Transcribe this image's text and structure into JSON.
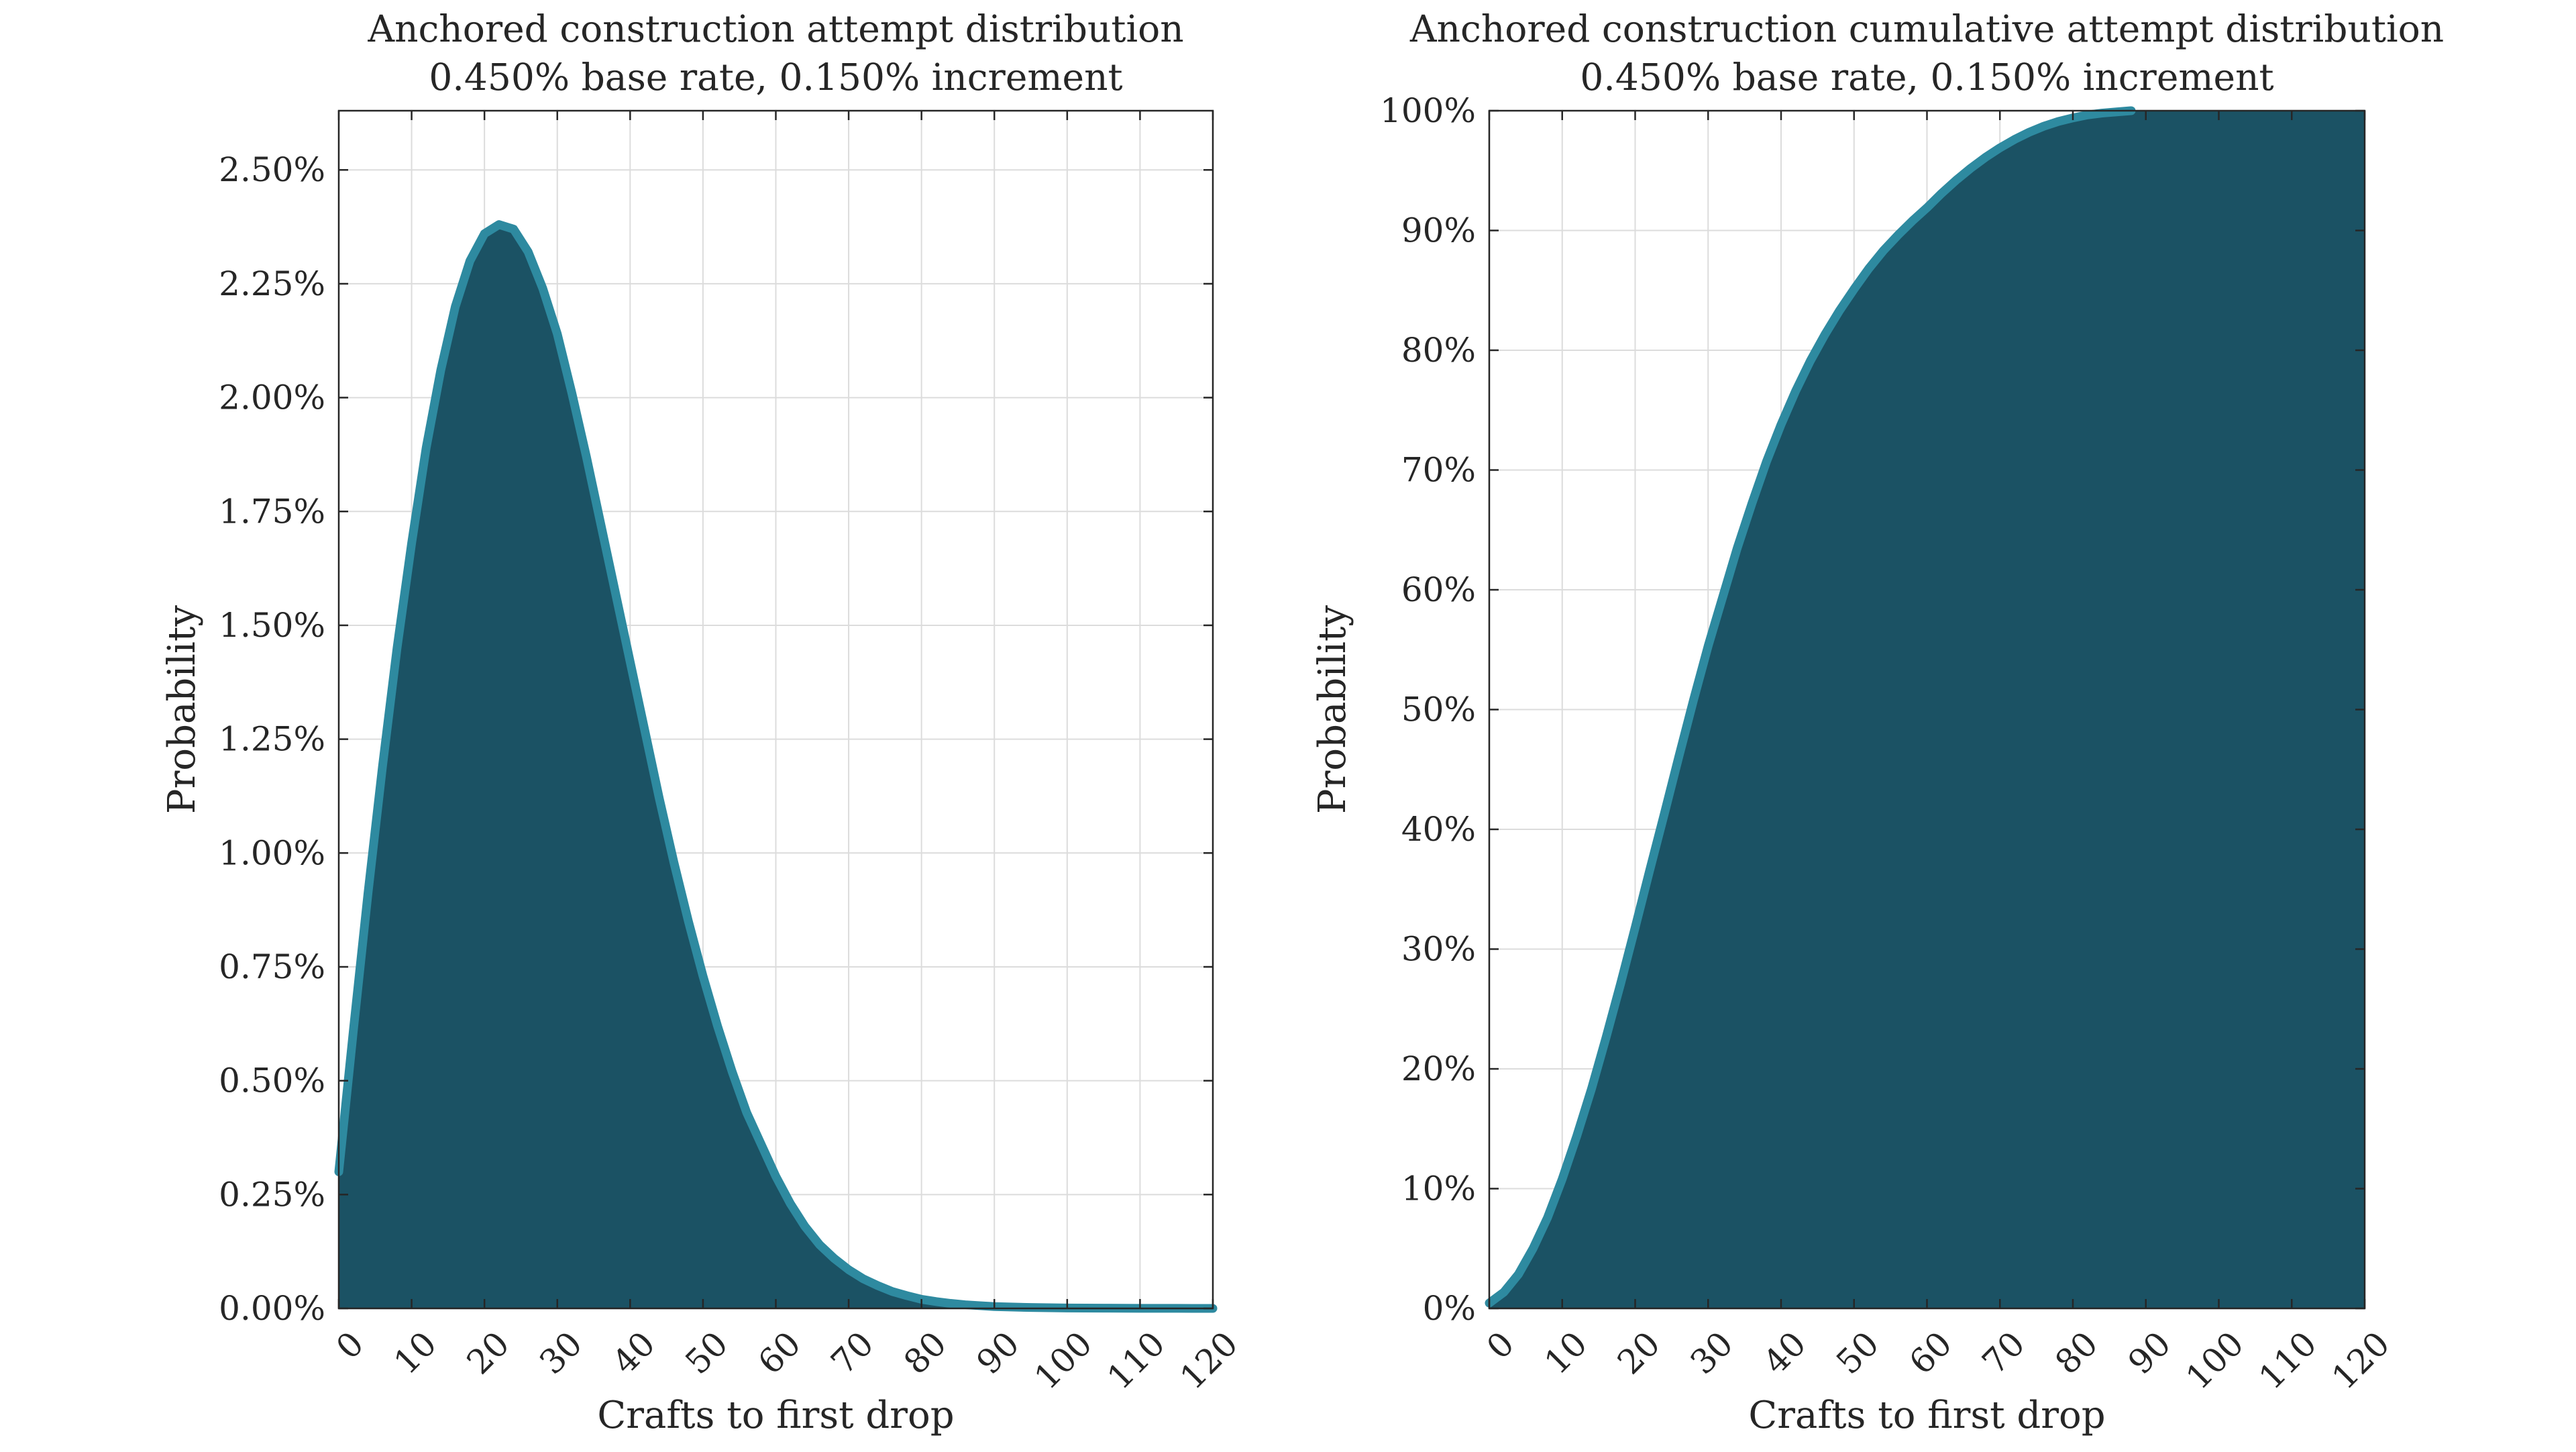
{
  "colors": {
    "fill": "#1b5264",
    "line": "#2e8aa0",
    "grid": "#dcdcdc",
    "axis": "#262626",
    "background": "#ffffff"
  },
  "chart_data": [
    {
      "type": "area",
      "title": "Anchored construction attempt distribution",
      "subtitle": "0.450% base rate, 0.150% increment",
      "xlabel": "Crafts to first drop",
      "ylabel": "Probability",
      "xlim": [
        0,
        120
      ],
      "ylim": [
        0,
        0.0263
      ],
      "xticks": [
        0,
        10,
        20,
        30,
        40,
        50,
        60,
        70,
        80,
        90,
        100,
        110,
        120
      ],
      "xtick_labels": [
        "0",
        "10",
        "20",
        "30",
        "40",
        "50",
        "60",
        "70",
        "80",
        "90",
        "100",
        "110",
        "120"
      ],
      "yticks": [
        0,
        0.0025,
        0.005,
        0.0075,
        0.01,
        0.0125,
        0.015,
        0.0175,
        0.02,
        0.0225,
        0.025
      ],
      "ytick_labels": [
        "0.00%",
        "0.25%",
        "0.50%",
        "0.75%",
        "1.00%",
        "1.25%",
        "1.50%",
        "1.75%",
        "2.00%",
        "2.25%",
        "2.50%"
      ],
      "grid": true,
      "series": [
        {
          "x": [
            0,
            2,
            4,
            6,
            8,
            10,
            12,
            14,
            16,
            18,
            20,
            22,
            24,
            26,
            28,
            30,
            32,
            34,
            36,
            38,
            40,
            42,
            44,
            46,
            48,
            50,
            52,
            54,
            56,
            58,
            60,
            62,
            64,
            66,
            68,
            70,
            72,
            74,
            76,
            78,
            80,
            82,
            84,
            86,
            88,
            90,
            95,
            100,
            105,
            110,
            115,
            120
          ],
          "y": [
            0.003,
            0.0061,
            0.0091,
            0.0119,
            0.0145,
            0.0168,
            0.0189,
            0.0206,
            0.022,
            0.023,
            0.0236,
            0.0238,
            0.0237,
            0.0232,
            0.0224,
            0.0214,
            0.0201,
            0.0187,
            0.0172,
            0.0157,
            0.0142,
            0.0127,
            0.0112,
            0.0098,
            0.0085,
            0.0073,
            0.0062,
            0.0052,
            0.0043,
            0.0036,
            0.0029,
            0.0023,
            0.0018,
            0.0014,
            0.0011,
            0.00085,
            0.00065,
            0.0005,
            0.00037,
            0.00028,
            0.0002,
            0.00015,
            0.00011,
            8e-05,
            6e-05,
            4e-05,
            2e-05,
            1e-05,
            5e-06,
            2e-06,
            1e-06,
            0
          ]
        }
      ]
    },
    {
      "type": "area",
      "title": "Anchored construction cumulative attempt distribution",
      "subtitle": "0.450% base rate, 0.150% increment",
      "xlabel": "Crafts to first drop",
      "ylabel": "Probability",
      "xlim": [
        0,
        120
      ],
      "ylim": [
        0,
        1
      ],
      "xticks": [
        0,
        10,
        20,
        30,
        40,
        50,
        60,
        70,
        80,
        90,
        100,
        110,
        120
      ],
      "xtick_labels": [
        "0",
        "10",
        "20",
        "30",
        "40",
        "50",
        "60",
        "70",
        "80",
        "90",
        "100",
        "110",
        "120"
      ],
      "yticks": [
        0,
        0.1,
        0.2,
        0.3,
        0.4,
        0.5,
        0.6,
        0.7,
        0.8,
        0.9,
        1.0
      ],
      "ytick_labels": [
        "0%",
        "10%",
        "20%",
        "30%",
        "40%",
        "50%",
        "60%",
        "70%",
        "80%",
        "90%",
        "100%"
      ],
      "grid": true,
      "series": [
        {
          "x": [
            0,
            2,
            4,
            6,
            8,
            10,
            12,
            14,
            16,
            18,
            20,
            22,
            24,
            26,
            28,
            30,
            32,
            34,
            36,
            38,
            40,
            42,
            44,
            46,
            48,
            50,
            52,
            54,
            56,
            58,
            60,
            62,
            64,
            66,
            68,
            70,
            72,
            74,
            76,
            78,
            80,
            82,
            84,
            86,
            88
          ],
          "y": [
            0.0045,
            0.0135,
            0.0285,
            0.05,
            0.076,
            0.108,
            0.144,
            0.183,
            0.226,
            0.271,
            0.318,
            0.366,
            0.413,
            0.461,
            0.508,
            0.553,
            0.594,
            0.635,
            0.672,
            0.707,
            0.738,
            0.766,
            0.791,
            0.813,
            0.833,
            0.851,
            0.868,
            0.883,
            0.896,
            0.908,
            0.919,
            0.931,
            0.942,
            0.952,
            0.961,
            0.969,
            0.976,
            0.982,
            0.987,
            0.991,
            0.994,
            0.9965,
            0.998,
            0.999,
            1.0
          ]
        }
      ]
    }
  ]
}
